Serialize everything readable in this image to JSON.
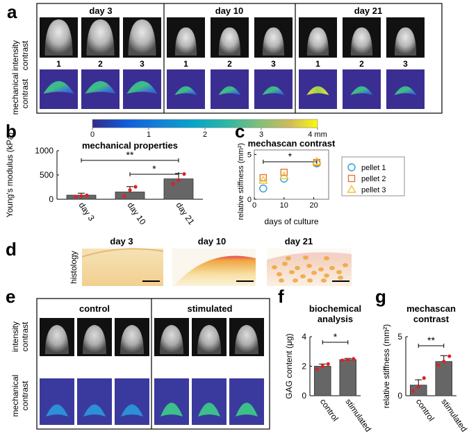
{
  "panel_a": {
    "letter": "a",
    "day_labels": [
      "day 3",
      "day 10",
      "day 21"
    ],
    "sample_numbers": [
      "1",
      "2",
      "3"
    ],
    "row_label_intensity": [
      "intensity",
      "contrast"
    ],
    "row_label_mechanical": [
      "mechanical",
      "contrast"
    ],
    "colorbar_ticks": [
      "0",
      "1",
      "2",
      "3",
      "4 mm"
    ]
  },
  "panel_b": {
    "letter": "b",
    "chart_data": {
      "type": "bar",
      "title": "mechanical properties",
      "ylabel": "Young's modulus (kPa)",
      "categories": [
        "day 3",
        "day 10",
        "day 21"
      ],
      "values": [
        85,
        150,
        420
      ],
      "errors": [
        40,
        110,
        110
      ],
      "points": [
        [
          55,
          65,
          80
        ],
        [
          60,
          190,
          255
        ],
        [
          320,
          390,
          520
        ]
      ],
      "ylim": [
        0,
        1000
      ],
      "yticks": [
        "0",
        "500",
        "1000"
      ],
      "significance": [
        {
          "from": "day 3",
          "to": "day 21",
          "label": "**"
        },
        {
          "from": "day 10",
          "to": "day 21",
          "label": "*"
        }
      ]
    }
  },
  "panel_c": {
    "letter": "c",
    "chart_data": {
      "type": "scatter",
      "title": "mechascan contrast",
      "xlabel": "days of culture",
      "ylabel": "relative stiffness (mm²)",
      "x": [
        3,
        10,
        21
      ],
      "xlim": [
        0,
        25
      ],
      "ylim": [
        0,
        5.5
      ],
      "xticks": [
        "0",
        "10",
        "20"
      ],
      "yticks": [
        "0",
        "5"
      ],
      "series": [
        {
          "name": "pellet 1",
          "marker": "circle",
          "color": "#2a9dd6",
          "values": [
            1.2,
            2.3,
            4.0
          ]
        },
        {
          "name": "pellet 2",
          "marker": "square",
          "color": "#e8752c",
          "values": [
            2.4,
            3.0,
            4.1
          ]
        },
        {
          "name": "pellet 3",
          "marker": "triangle",
          "color": "#f0c030",
          "values": [
            2.1,
            2.6,
            4.2
          ]
        }
      ],
      "significance": [
        {
          "from": 3,
          "to": 21,
          "label": "*"
        }
      ]
    }
  },
  "panel_d": {
    "letter": "d",
    "row_label": "histology",
    "day_labels": [
      "day 3",
      "day 10",
      "day 21"
    ]
  },
  "panel_e": {
    "letter": "e",
    "group_labels": [
      "control",
      "stimulated"
    ],
    "row_label_intensity": [
      "intensity",
      "contrast"
    ],
    "row_label_mechanical": [
      "mechanical",
      "contrast"
    ]
  },
  "panel_f": {
    "letter": "f",
    "chart_data": {
      "type": "bar",
      "title_lines": [
        "biochemical",
        "analysis"
      ],
      "ylabel": "GAG content (μg)",
      "categories": [
        "control",
        "stimulated"
      ],
      "values": [
        2.0,
        2.45
      ],
      "errors": [
        0.15,
        0.08
      ],
      "points": [
        [
          1.8,
          2.0,
          2.15
        ],
        [
          2.4,
          2.45,
          2.5
        ]
      ],
      "ylim": [
        0,
        4
      ],
      "yticks": [
        "0",
        "2",
        "4"
      ],
      "significance": [
        {
          "from": "control",
          "to": "stimulated",
          "label": "*"
        }
      ]
    }
  },
  "panel_g": {
    "letter": "g",
    "chart_data": {
      "type": "bar",
      "title_lines": [
        "mechascan",
        "contrast"
      ],
      "ylabel": "relative stiffness (mm²)",
      "categories": [
        "control",
        "stimulated"
      ],
      "values": [
        0.9,
        2.9
      ],
      "errors": [
        0.45,
        0.5
      ],
      "points": [
        [
          0.4,
          0.75,
          1.5
        ],
        [
          2.6,
          2.9,
          3.35
        ]
      ],
      "ylim": [
        0,
        5
      ],
      "yticks": [
        "0",
        "5"
      ],
      "significance": [
        {
          "from": "control",
          "to": "stimulated",
          "label": "**"
        }
      ]
    }
  }
}
